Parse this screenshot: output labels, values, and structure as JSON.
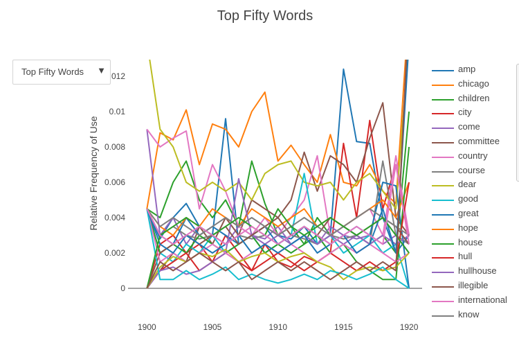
{
  "dropdown": {
    "selected": "Top Fifty Words",
    "arrow": "▼"
  },
  "chart_data": {
    "type": "line",
    "title": "Top Fifty Words",
    "xlabel": "",
    "ylabel": "Relative Frequency of Use",
    "xlim": [
      1897.5,
      1921
    ],
    "ylim": [
      -0.0001,
      0.0125
    ],
    "xticks": [
      1900,
      1905,
      1910,
      1915,
      1920
    ],
    "yticks": [
      0,
      0.002,
      0.004,
      0.006,
      0.008,
      0.01,
      0.012
    ],
    "ytick_labels": [
      "0",
      "0.002",
      "0.004",
      "0.006",
      "0.008",
      "0.01",
      "0.012"
    ],
    "grid": false,
    "legend_position": "right",
    "x": [
      1900,
      1901,
      1902,
      1903,
      1904,
      1905,
      1906,
      1907,
      1908,
      1909,
      1910,
      1911,
      1912,
      1913,
      1914,
      1915,
      1916,
      1917,
      1918,
      1919,
      1920
    ],
    "series": [
      {
        "name": "amp",
        "color": "#1f77b4",
        "values": [
          0.0045,
          0.0028,
          0.004,
          0.0048,
          0.0035,
          0.003,
          0.0096,
          0.0025,
          0.003,
          0.0035,
          0.003,
          0.0028,
          0.0035,
          0.0025,
          0.003,
          0.0124,
          0.0083,
          0.0082,
          0.004,
          0.002,
          0.003
        ]
      },
      {
        "name": "chicago",
        "color": "#ff7f0e",
        "values": [
          0.0045,
          0.0088,
          0.0084,
          0.0101,
          0.007,
          0.0093,
          0.009,
          0.008,
          0.01,
          0.0111,
          0.0072,
          0.0081,
          0.007,
          0.006,
          0.0087,
          0.006,
          0.0058,
          0.007,
          0.0055,
          0.0048,
          0.016
        ]
      },
      {
        "name": "children",
        "color": "#2ca02c",
        "values": [
          0.0045,
          0.004,
          0.006,
          0.0072,
          0.005,
          0.004,
          0.005,
          0.0035,
          0.0072,
          0.0048,
          0.003,
          0.0035,
          0.0025,
          0.004,
          0.003,
          0.0035,
          0.003,
          0.0025,
          0.003,
          0.002,
          0.01
        ]
      },
      {
        "name": "city",
        "color": "#d62728",
        "values": [
          0.0,
          0.0025,
          0.003,
          0.002,
          0.0025,
          0.0015,
          0.003,
          0.002,
          0.001,
          0.0025,
          0.0015,
          0.0012,
          0.0018,
          0.0015,
          0.002,
          0.0082,
          0.004,
          0.0095,
          0.0045,
          0.007,
          0.003
        ]
      },
      {
        "name": "come",
        "color": "#9467bd",
        "values": [
          0.009,
          0.003,
          0.004,
          0.0025,
          0.0035,
          0.003,
          0.0025,
          0.0035,
          0.003,
          0.0028,
          0.0035,
          0.0025,
          0.003,
          0.0025,
          0.0035,
          0.003,
          0.0028,
          0.003,
          0.0025,
          0.003,
          0.002
        ]
      },
      {
        "name": "committee",
        "color": "#8c564b",
        "values": [
          0.0,
          0.001,
          0.002,
          0.0015,
          0.0035,
          0.0025,
          0.004,
          0.003,
          0.005,
          0.0045,
          0.004,
          0.005,
          0.0077,
          0.0055,
          0.0075,
          0.007,
          0.006,
          0.0085,
          0.0105,
          0.004,
          0.003
        ]
      },
      {
        "name": "country",
        "color": "#e377c2",
        "values": [
          0.009,
          0.008,
          0.0085,
          0.0089,
          0.0045,
          0.007,
          0.0055,
          0.0035,
          0.003,
          0.004,
          0.003,
          0.004,
          0.005,
          0.0075,
          0.003,
          0.0035,
          0.004,
          0.0045,
          0.003,
          0.0075,
          0.003
        ]
      },
      {
        "name": "course",
        "color": "#7f7f7f",
        "values": [
          0.0045,
          0.003,
          0.0035,
          0.003,
          0.0028,
          0.003,
          0.0025,
          0.003,
          0.0028,
          0.003,
          0.0025,
          0.003,
          0.0028,
          0.0025,
          0.003,
          0.0028,
          0.003,
          0.0025,
          0.0072,
          0.003,
          0.0025
        ]
      },
      {
        "name": "dear",
        "color": "#bcbd22",
        "values": [
          0.014,
          0.009,
          0.008,
          0.006,
          0.0055,
          0.006,
          0.0055,
          0.006,
          0.005,
          0.0065,
          0.007,
          0.0072,
          0.006,
          0.0058,
          0.006,
          0.005,
          0.006,
          0.0065,
          0.0055,
          0.0045,
          0.014
        ]
      },
      {
        "name": "good",
        "color": "#17becf",
        "values": [
          0.0045,
          0.002,
          0.0015,
          0.0025,
          0.002,
          0.003,
          0.002,
          0.0025,
          0.003,
          0.002,
          0.0025,
          0.003,
          0.0065,
          0.0025,
          0.003,
          0.002,
          0.0025,
          0.003,
          0.002,
          0.0025,
          0.0
        ]
      },
      {
        "name": "great",
        "color": "#1f77b4",
        "values": [
          0.0045,
          0.003,
          0.0025,
          0.004,
          0.003,
          0.0035,
          0.003,
          0.0025,
          0.003,
          0.0035,
          0.0025,
          0.003,
          0.0035,
          0.003,
          0.0025,
          0.003,
          0.0035,
          0.003,
          0.006,
          0.0058,
          0.0
        ]
      },
      {
        "name": "hope",
        "color": "#ff7f0e",
        "values": [
          0.0045,
          0.0035,
          0.003,
          0.004,
          0.0035,
          0.0045,
          0.004,
          0.0035,
          0.0045,
          0.004,
          0.0035,
          0.004,
          0.0045,
          0.0035,
          0.004,
          0.0035,
          0.004,
          0.0045,
          0.005,
          0.004,
          0.006
        ]
      },
      {
        "name": "house",
        "color": "#2ca02c",
        "values": [
          0.0045,
          0.002,
          0.0025,
          0.002,
          0.003,
          0.0025,
          0.002,
          0.0025,
          0.003,
          0.002,
          0.0025,
          0.002,
          0.0025,
          0.003,
          0.002,
          0.0025,
          0.0015,
          0.001,
          0.0005,
          0.0005,
          0.008
        ]
      },
      {
        "name": "hull",
        "color": "#d62728",
        "values": [
          0.0,
          0.001,
          0.0015,
          0.002,
          0.001,
          0.0015,
          0.002,
          0.0015,
          0.001,
          0.0015,
          0.002,
          0.0015,
          0.001,
          0.0015,
          0.002,
          0.0015,
          0.001,
          0.0015,
          0.001,
          0.0015,
          0.006
        ]
      },
      {
        "name": "hullhouse",
        "color": "#9467bd",
        "values": [
          0.0,
          0.001,
          0.0012,
          0.0008,
          0.001,
          0.0015,
          0.002,
          0.0062,
          0.003,
          0.0025,
          0.003,
          0.0025,
          0.003,
          0.0025,
          0.003,
          0.0025,
          0.003,
          0.0025,
          0.003,
          0.0025,
          0.003
        ]
      },
      {
        "name": "illegible",
        "color": "#8c564b",
        "values": [
          0.0,
          0.002,
          0.0025,
          0.003,
          0.0025,
          0.003,
          0.0035,
          0.0025,
          0.003,
          0.0035,
          0.004,
          0.003,
          0.0035,
          0.003,
          0.004,
          0.0035,
          0.003,
          0.0035,
          0.004,
          0.0035,
          0.0025
        ]
      },
      {
        "name": "international",
        "color": "#e377c2",
        "values": [
          0.0045,
          0.0015,
          0.002,
          0.0015,
          0.002,
          0.0025,
          0.002,
          0.0015,
          0.002,
          0.0025,
          0.002,
          0.0025,
          0.002,
          0.0015,
          0.002,
          0.0025,
          0.002,
          0.0025,
          0.002,
          0.0015,
          0.002
        ]
      },
      {
        "name": "know",
        "color": "#7f7f7f",
        "values": [
          0.0045,
          0.0035,
          0.004,
          0.0035,
          0.003,
          0.0035,
          0.004,
          0.0035,
          0.004,
          0.0035,
          0.003,
          0.0035,
          0.004,
          0.0035,
          0.003,
          0.0035,
          0.004,
          0.0045,
          0.004,
          0.0035,
          0.003
        ]
      },
      {
        "name": "",
        "color": "#bcbd22",
        "values": [
          0.0,
          0.0012,
          0.0018,
          0.0015,
          0.002,
          0.0018,
          0.0022,
          0.0015,
          0.0018,
          0.002,
          0.0015,
          0.0018,
          0.002,
          0.0015,
          0.0012,
          0.0005,
          0.001,
          0.0012,
          0.001,
          0.0012,
          0.002
        ]
      },
      {
        "name": "",
        "color": "#17becf",
        "values": [
          0.0045,
          0.0005,
          0.0005,
          0.001,
          0.0005,
          0.0008,
          0.0012,
          0.0005,
          0.0008,
          0.0005,
          0.0003,
          0.0005,
          0.0008,
          0.0005,
          0.001,
          0.0008,
          0.0005,
          0.0008,
          0.0012,
          0.0005,
          0.0
        ]
      },
      {
        "name": "",
        "color": "#1f77b4",
        "values": [
          0.0045,
          0.0025,
          0.002,
          0.003,
          0.0025,
          0.002,
          0.0025,
          0.003,
          0.002,
          0.0025,
          0.002,
          0.0025,
          0.003,
          0.002,
          0.0025,
          0.003,
          0.002,
          0.0025,
          0.0045,
          0.002,
          0.014
        ]
      },
      {
        "name": "",
        "color": "#2ca02c",
        "values": [
          0.0,
          0.003,
          0.0035,
          0.004,
          0.0035,
          0.003,
          0.0035,
          0.004,
          0.0035,
          0.003,
          0.0045,
          0.0035,
          0.003,
          0.0035,
          0.004,
          0.0035,
          0.003,
          0.0035,
          0.004,
          0.003,
          0.002
        ]
      },
      {
        "name": "",
        "color": "#8c564b",
        "values": [
          0.0,
          0.0015,
          0.001,
          0.0015,
          0.002,
          0.0015,
          0.001,
          0.0015,
          0.0005,
          0.001,
          0.0015,
          0.001,
          0.0015,
          0.001,
          0.0005,
          0.001,
          0.0015,
          0.001,
          0.0015,
          0.001,
          0.016
        ]
      },
      {
        "name": "",
        "color": "#e377c2",
        "values": [
          0.0045,
          0.003,
          0.0025,
          0.003,
          0.0035,
          0.003,
          0.0025,
          0.003,
          0.0035,
          0.003,
          0.0025,
          0.003,
          0.0035,
          0.003,
          0.0025,
          0.003,
          0.0035,
          0.003,
          0.0025,
          0.007,
          0.0025
        ]
      }
    ]
  }
}
